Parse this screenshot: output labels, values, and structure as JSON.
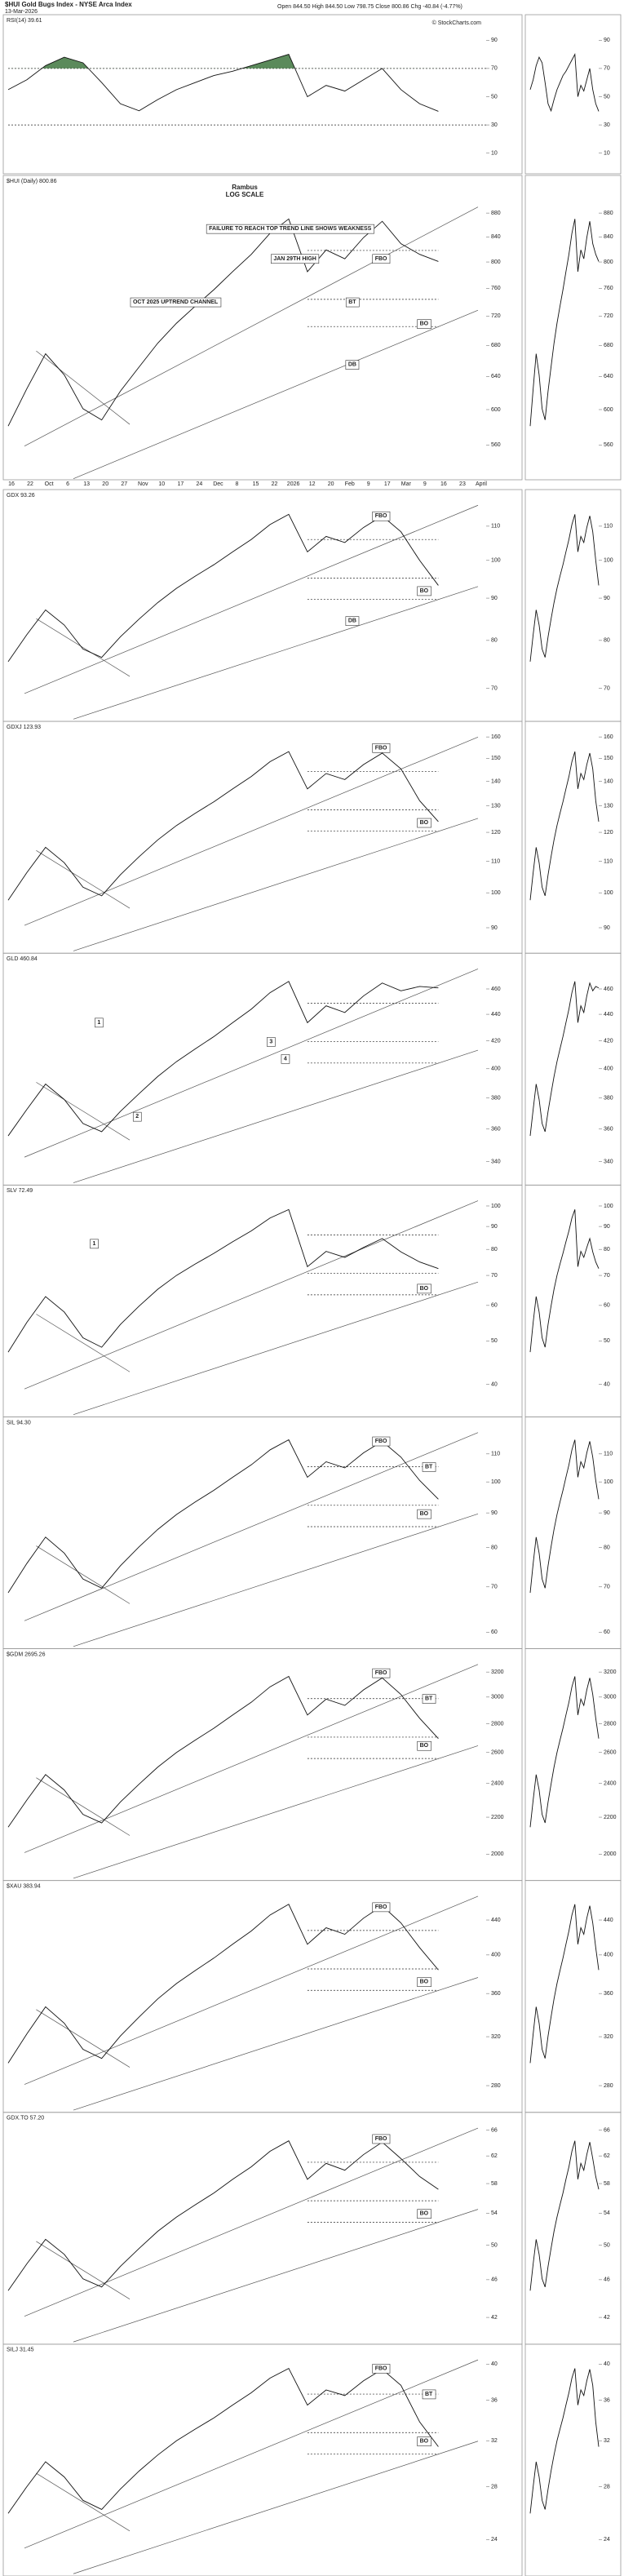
{
  "header": {
    "title": "$HUI Gold Bugs Index - NYSE Arca Index",
    "date": "13-Mar-2026",
    "quote": "Open 844.50  High 844.50  Low 798.75  Close 800.86  Chg -40.84 (-4.77%)",
    "credit": "© StockCharts.com"
  },
  "chart_data": [
    {
      "type": "line",
      "label": "RSI(14) 39.61",
      "ylim": [
        0,
        100
      ],
      "yticks": [
        10,
        30,
        50,
        70,
        90
      ],
      "log": false,
      "bands": [
        30,
        70
      ],
      "fill_color": "#5b8a5b",
      "values": [
        55,
        62,
        72,
        78,
        74,
        60,
        45,
        40,
        48,
        55,
        60,
        65,
        68,
        72,
        76,
        80,
        50,
        58,
        54,
        62,
        70,
        55,
        45,
        39.61
      ],
      "annotations": []
    },
    {
      "type": "line",
      "label": "$HUI (Daily) 800.86",
      "title": "Rambus",
      "subtitle": "LOG SCALE",
      "ylim": [
        530,
        900
      ],
      "yticks": [
        560,
        600,
        640,
        680,
        720,
        760,
        800,
        840,
        880
      ],
      "log": true,
      "x_labels": [
        "16",
        "22",
        "Oct",
        "6",
        "13",
        "20",
        "27",
        "Nov",
        "10",
        "17",
        "24",
        "Dec",
        "8",
        "15",
        "22",
        "2026",
        "12",
        "20",
        "Feb",
        "9",
        "17",
        "Mar",
        "9",
        "16",
        "23",
        "April"
      ],
      "values": [
        581,
        625,
        669,
        642,
        601,
        588,
        622,
        652,
        683,
        710,
        734,
        758,
        785,
        812,
        846,
        870,
        785,
        819,
        805,
        839,
        866,
        829,
        812,
        800.86
      ],
      "annotations": [
        "FAILURE TO REACH TOP TREND LINE SHOWS WEAKNESS",
        "JAN 29TH HIGH",
        "OCT 2025 UPTREND CHANNEL",
        "FBO",
        "BT",
        "BO",
        "DB"
      ]
    },
    {
      "type": "line",
      "label": "GDX 93.26",
      "ylim": [
        65,
        118
      ],
      "yticks": [
        70,
        80,
        90,
        100,
        110
      ],
      "log": true,
      "values": [
        75.4,
        81.3,
        87.1,
        83.5,
        78.1,
        76.3,
        80.8,
        84.9,
        88.9,
        92.5,
        95.7,
        98.8,
        102.4,
        106.0,
        110.5,
        113.7,
        102.4,
        106.9,
        105.1,
        109.6,
        113.2,
        108.3,
        100.0,
        93.26
      ],
      "annotations": [
        "FBO",
        "BO",
        "DB"
      ]
    },
    {
      "type": "line",
      "label": "GDXJ 123.93",
      "ylim": [
        85,
        162
      ],
      "yticks": [
        90,
        100,
        110,
        120,
        130,
        140,
        150,
        160
      ],
      "log": true,
      "values": [
        97.8,
        106.3,
        114.7,
        109.5,
        101.7,
        99.1,
        105.6,
        111.5,
        117.3,
        122.5,
        127.1,
        131.6,
        136.8,
        142.0,
        148.5,
        153.1,
        136.8,
        143.3,
        140.7,
        147.2,
        152.4,
        145.3,
        132.0,
        123.93
      ],
      "annotations": [
        "FBO",
        "BO"
      ]
    },
    {
      "type": "line",
      "label": "GLD 460.84",
      "ylim": [
        330,
        480
      ],
      "yticks": [
        340,
        360,
        380,
        400,
        420,
        440,
        460
      ],
      "log": true,
      "values": [
        355.6,
        372.5,
        389.4,
        379,
        363.4,
        358.2,
        371.2,
        382.9,
        394.6,
        405,
        414.1,
        423.2,
        433.6,
        444,
        457,
        466.1,
        433.6,
        446.6,
        441.4,
        454.4,
        464.8,
        458.5,
        462,
        460.84
      ],
      "annotations": [
        "1",
        "2",
        "3",
        "4"
      ]
    },
    {
      "type": "line",
      "label": "SLV 72.49",
      "ylim": [
        35,
        105
      ],
      "yticks": [
        40,
        50,
        60,
        70,
        80,
        90,
        100
      ],
      "log": true,
      "values": [
        47.2,
        55,
        62.8,
        58,
        50.8,
        48.4,
        54.4,
        59.8,
        65.2,
        70,
        74.2,
        78.4,
        83.2,
        88,
        94,
        98.2,
        73.2,
        79.2,
        76.8,
        80.8,
        84.6,
        79,
        75,
        72.49
      ],
      "annotations": [
        "1",
        "BO"
      ]
    },
    {
      "type": "line",
      "label": "SIL 94.30",
      "ylim": [
        58,
        120
      ],
      "yticks": [
        60,
        70,
        80,
        90,
        100,
        110
      ],
      "log": true,
      "values": [
        68.6,
        75.8,
        82.9,
        78.5,
        71.9,
        69.7,
        75.2,
        80.2,
        85.1,
        89.5,
        93.4,
        97.2,
        101.6,
        106,
        111.5,
        115.4,
        101.6,
        107.1,
        104.9,
        110.4,
        114.8,
        108.8,
        100.5,
        94.3
      ],
      "annotations": [
        "FBO",
        "BT",
        "BO"
      ]
    },
    {
      "type": "line",
      "label": "$GDM 2695.26",
      "ylim": [
        1900,
        3300
      ],
      "yticks": [
        2000,
        2200,
        2400,
        2600,
        2800,
        3000,
        3200
      ],
      "log": true,
      "values": [
        2144,
        2300,
        2456,
        2360,
        2216,
        2168,
        2288,
        2396,
        2504,
        2600,
        2684,
        2768,
        2864,
        2960,
        3080,
        3164,
        2864,
        2984,
        2936,
        3056,
        3152,
        3020,
        2840,
        2695.26
      ],
      "annotations": [
        "FBO",
        "BT",
        "BO"
      ]
    },
    {
      "type": "line",
      "label": "$XAU 383.94",
      "ylim": [
        265,
        475
      ],
      "yticks": [
        280,
        320,
        360,
        400,
        440
      ],
      "log": true,
      "values": [
        297.8,
        322.5,
        347.2,
        332,
        309.2,
        301.6,
        320.6,
        337.7,
        354.8,
        370,
        383.3,
        396.6,
        411.8,
        427,
        446,
        459.3,
        411.8,
        430.8,
        423.2,
        442.2,
        457.4,
        436.5,
        408,
        383.94
      ],
      "annotations": [
        "FBO",
        "BO"
      ]
    },
    {
      "type": "line",
      "label": "GDX.TO 57.20",
      "ylim": [
        40,
        67
      ],
      "yticks": [
        42,
        46,
        50,
        54,
        58,
        62,
        66
      ],
      "log": true,
      "values": [
        44.8,
        47.8,
        50.7,
        48.9,
        46.1,
        45.2,
        47.5,
        49.6,
        51.7,
        53.5,
        55.1,
        56.7,
        58.6,
        60.4,
        62.7,
        64.3,
        58.6,
        60.9,
        59.9,
        62.2,
        64.1,
        61.6,
        59.0,
        57.2
      ],
      "annotations": [
        "FBO",
        "BO"
      ]
    },
    {
      "type": "line",
      "label": "SILJ 31.45",
      "ylim": [
        22,
        41
      ],
      "yticks": [
        24,
        28,
        32,
        36,
        40
      ],
      "log": true,
      "values": [
        25.9,
        28,
        30.1,
        28.8,
        26.9,
        26.2,
        27.8,
        29.3,
        30.7,
        32,
        33.1,
        34.2,
        35.5,
        36.8,
        38.4,
        39.5,
        35.5,
        37.1,
        36.5,
        38.1,
        39.4,
        37.6,
        33.8,
        31.45
      ],
      "annotations": [
        "FBO",
        "BT",
        "BO"
      ]
    }
  ]
}
